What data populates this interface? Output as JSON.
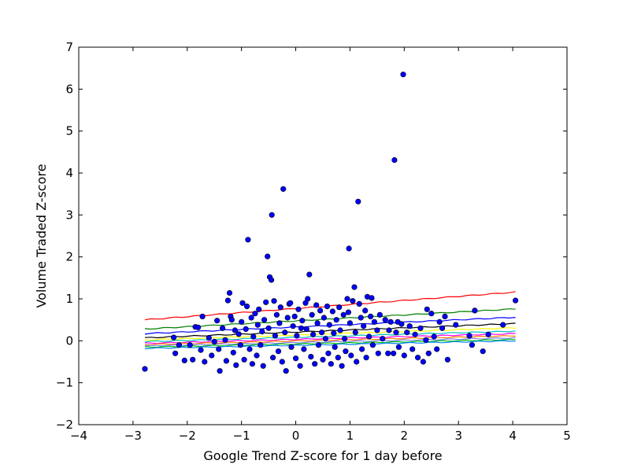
{
  "chart_data": {
    "type": "scatter",
    "title": "",
    "xlabel": "Google Trend Z-score for 1 day before",
    "ylabel": "Volume Traded Z-score",
    "xlim": [
      -4,
      5
    ],
    "ylim": [
      -2,
      7
    ],
    "xticks": [
      -4,
      -3,
      -2,
      -1,
      0,
      1,
      2,
      3,
      4,
      5
    ],
    "yticks": [
      -2,
      -1,
      0,
      1,
      2,
      3,
      4,
      5,
      6,
      7
    ],
    "xtick_labels": [
      "−4",
      "−3",
      "−2",
      "−1",
      "0",
      "1",
      "2",
      "3",
      "4",
      "5"
    ],
    "ytick_labels": [
      "−2",
      "−1",
      "0",
      "1",
      "2",
      "3",
      "4",
      "5",
      "6",
      "7"
    ],
    "grid": false,
    "legend": false,
    "points_color": "#0000ff",
    "points": [
      [
        -2.78,
        -0.67
      ],
      [
        -2.25,
        0.08
      ],
      [
        -2.22,
        -0.3
      ],
      [
        -2.15,
        -0.1
      ],
      [
        -2.05,
        -0.47
      ],
      [
        -1.95,
        -0.1
      ],
      [
        -1.9,
        -0.45
      ],
      [
        -1.85,
        0.33
      ],
      [
        -1.8,
        0.32
      ],
      [
        -1.75,
        -0.22
      ],
      [
        -1.72,
        0.58
      ],
      [
        -1.68,
        -0.5
      ],
      [
        -1.6,
        0.07
      ],
      [
        -1.55,
        -0.35
      ],
      [
        -1.5,
        -0.02
      ],
      [
        -1.45,
        0.48
      ],
      [
        -1.42,
        -0.2
      ],
      [
        -1.4,
        -0.72
      ],
      [
        -1.35,
        0.3
      ],
      [
        -1.3,
        0.02
      ],
      [
        -1.28,
        -0.48
      ],
      [
        -1.25,
        0.96
      ],
      [
        -1.22,
        1.14
      ],
      [
        -1.2,
        0.58
      ],
      [
        -1.18,
        0.5
      ],
      [
        -1.15,
        -0.28
      ],
      [
        -1.12,
        0.25
      ],
      [
        -1.1,
        -0.58
      ],
      [
        -1.05,
        0.16
      ],
      [
        -1.02,
        -0.1
      ],
      [
        -1.0,
        0.45
      ],
      [
        -0.98,
        0.9
      ],
      [
        -0.95,
        -0.45
      ],
      [
        -0.92,
        0.28
      ],
      [
        -0.9,
        0.82
      ],
      [
        -0.88,
        2.41
      ],
      [
        -0.85,
        -0.2
      ],
      [
        -0.82,
        0.55
      ],
      [
        -0.8,
        -0.55
      ],
      [
        -0.78,
        0.1
      ],
      [
        -0.75,
        0.65
      ],
      [
        -0.72,
        -0.35
      ],
      [
        -0.7,
        0.38
      ],
      [
        -0.68,
        0.75
      ],
      [
        -0.65,
        -0.1
      ],
      [
        -0.62,
        0.22
      ],
      [
        -0.6,
        -0.6
      ],
      [
        -0.58,
        0.5
      ],
      [
        -0.55,
        0.92
      ],
      [
        -0.52,
        2.01
      ],
      [
        -0.5,
        0.3
      ],
      [
        -0.48,
        1.52
      ],
      [
        -0.45,
        1.45
      ],
      [
        -0.44,
        3.0
      ],
      [
        -0.42,
        -0.4
      ],
      [
        -0.4,
        0.95
      ],
      [
        -0.38,
        0.12
      ],
      [
        -0.35,
        0.62
      ],
      [
        -0.32,
        -0.25
      ],
      [
        -0.3,
        0.42
      ],
      [
        -0.28,
        0.8
      ],
      [
        -0.25,
        -0.5
      ],
      [
        -0.23,
        3.62
      ],
      [
        -0.2,
        0.2
      ],
      [
        -0.18,
        -0.72
      ],
      [
        -0.15,
        0.55
      ],
      [
        -0.12,
        0.88
      ],
      [
        -0.1,
        0.9
      ],
      [
        -0.08,
        -0.15
      ],
      [
        -0.05,
        0.35
      ],
      [
        -0.02,
        0.58
      ],
      [
        0.0,
        -0.42
      ],
      [
        0.02,
        0.12
      ],
      [
        0.05,
        0.75
      ],
      [
        0.08,
        -0.6
      ],
      [
        0.1,
        0.3
      ],
      [
        0.12,
        0.48
      ],
      [
        0.15,
        -0.2
      ],
      [
        0.18,
        0.9
      ],
      [
        0.2,
        0.28
      ],
      [
        0.22,
        1.0
      ],
      [
        0.25,
        1.58
      ],
      [
        0.28,
        -0.38
      ],
      [
        0.3,
        0.62
      ],
      [
        0.32,
        0.15
      ],
      [
        0.35,
        -0.55
      ],
      [
        0.38,
        0.85
      ],
      [
        0.4,
        0.42
      ],
      [
        0.42,
        -0.1
      ],
      [
        0.45,
        0.72
      ],
      [
        0.48,
        0.2
      ],
      [
        0.5,
        -0.45
      ],
      [
        0.52,
        0.55
      ],
      [
        0.55,
        0.05
      ],
      [
        0.58,
        0.82
      ],
      [
        0.6,
        -0.3
      ],
      [
        0.62,
        0.38
      ],
      [
        0.65,
        -0.55
      ],
      [
        0.68,
        0.7
      ],
      [
        0.7,
        0.18
      ],
      [
        0.72,
        -0.15
      ],
      [
        0.75,
        0.5
      ],
      [
        0.78,
        -0.4
      ],
      [
        0.8,
        0.8
      ],
      [
        0.82,
        0.25
      ],
      [
        0.85,
        -0.6
      ],
      [
        0.88,
        0.62
      ],
      [
        0.9,
        0.05
      ],
      [
        0.92,
        -0.25
      ],
      [
        0.95,
        1.0
      ],
      [
        0.97,
        0.68
      ],
      [
        0.98,
        2.2
      ],
      [
        1.0,
        0.42
      ],
      [
        1.02,
        -0.35
      ],
      [
        1.05,
        0.95
      ],
      [
        1.08,
        1.28
      ],
      [
        1.1,
        0.2
      ],
      [
        1.12,
        -0.5
      ],
      [
        1.15,
        3.32
      ],
      [
        1.17,
        0.88
      ],
      [
        1.2,
        0.55
      ],
      [
        1.22,
        -0.2
      ],
      [
        1.25,
        0.35
      ],
      [
        1.28,
        0.72
      ],
      [
        1.3,
        -0.4
      ],
      [
        1.32,
        1.05
      ],
      [
        1.35,
        0.1
      ],
      [
        1.38,
        0.58
      ],
      [
        1.4,
        1.02
      ],
      [
        1.42,
        -0.1
      ],
      [
        1.45,
        0.45
      ],
      [
        1.5,
        0.25
      ],
      [
        1.52,
        -0.3
      ],
      [
        1.55,
        0.62
      ],
      [
        1.6,
        0.05
      ],
      [
        1.65,
        0.5
      ],
      [
        1.7,
        -0.3
      ],
      [
        1.72,
        0.25
      ],
      [
        1.75,
        0.45
      ],
      [
        1.8,
        -0.3
      ],
      [
        1.82,
        4.31
      ],
      [
        1.85,
        0.2
      ],
      [
        1.88,
        0.45
      ],
      [
        1.9,
        -0.15
      ],
      [
        1.95,
        0.4
      ],
      [
        1.98,
        6.35
      ],
      [
        2.0,
        -0.35
      ],
      [
        2.05,
        0.2
      ],
      [
        2.1,
        0.35
      ],
      [
        2.15,
        -0.2
      ],
      [
        2.2,
        0.15
      ],
      [
        2.25,
        -0.4
      ],
      [
        2.3,
        0.3
      ],
      [
        2.35,
        -0.5
      ],
      [
        2.4,
        0.02
      ],
      [
        2.42,
        0.75
      ],
      [
        2.45,
        -0.3
      ],
      [
        2.5,
        0.65
      ],
      [
        2.55,
        0.1
      ],
      [
        2.6,
        -0.2
      ],
      [
        2.65,
        0.45
      ],
      [
        2.7,
        0.3
      ],
      [
        2.75,
        0.58
      ],
      [
        2.8,
        -0.45
      ],
      [
        2.95,
        0.38
      ],
      [
        3.2,
        0.12
      ],
      [
        3.25,
        -0.1
      ],
      [
        3.3,
        0.72
      ],
      [
        3.45,
        -0.25
      ],
      [
        3.55,
        0.15
      ],
      [
        3.82,
        0.38
      ],
      [
        4.05,
        0.96
      ]
    ],
    "series": [
      {
        "color": "#ff0000",
        "x": [
          -2.78,
          4.05
        ],
        "y": [
          0.5,
          1.16
        ]
      },
      {
        "color": "#008000",
        "x": [
          -2.78,
          4.05
        ],
        "y": [
          0.28,
          0.76
        ]
      },
      {
        "color": "#0000ff",
        "x": [
          -2.78,
          4.05
        ],
        "y": [
          0.17,
          0.56
        ]
      },
      {
        "color": "#000000",
        "x": [
          -2.78,
          4.05
        ],
        "y": [
          0.07,
          0.41
        ]
      },
      {
        "color": "#ffff00",
        "x": [
          -2.78,
          4.05
        ],
        "y": [
          0.02,
          0.31
        ]
      },
      {
        "color": "#00bfbf",
        "x": [
          -2.78,
          4.05
        ],
        "y": [
          -0.02,
          0.23
        ]
      },
      {
        "color": "#ff00ff",
        "x": [
          -2.78,
          4.05
        ],
        "y": [
          -0.06,
          0.17
        ]
      },
      {
        "color": "#ff8000",
        "x": [
          -2.78,
          4.05
        ],
        "y": [
          -0.09,
          0.12
        ]
      },
      {
        "color": "#8080ff",
        "x": [
          -2.78,
          4.05
        ],
        "y": [
          -0.12,
          0.07
        ]
      },
      {
        "color": "#00c000",
        "x": [
          -2.78,
          4.05
        ],
        "y": [
          -0.15,
          0.03
        ]
      },
      {
        "color": "#0080ff",
        "x": [
          -2.78,
          4.05
        ],
        "y": [
          -0.18,
          0.0
        ]
      }
    ]
  }
}
